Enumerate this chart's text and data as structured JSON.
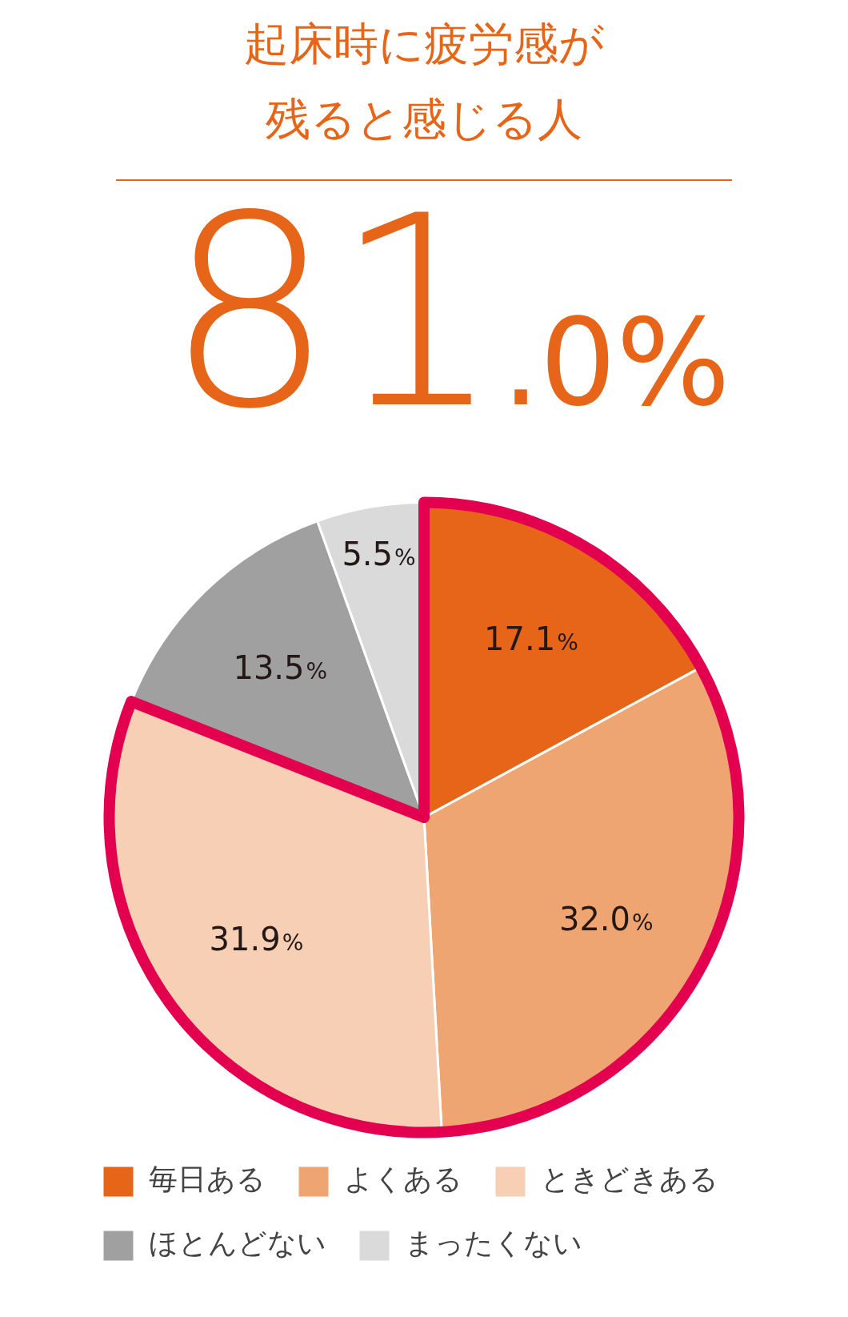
{
  "chart_data": {
    "type": "pie",
    "title": "起床時に疲労感が残ると感じる人",
    "annotations": [
      "81.0%"
    ],
    "categories": [
      "毎日ある",
      "よくある",
      "ときどきある",
      "ほとんどない",
      "まったくない"
    ],
    "values": [
      17.1,
      32.0,
      31.9,
      13.5,
      5.5
    ],
    "colors": [
      "#e66518",
      "#efa572",
      "#f6cfb5",
      "#a0a0a0",
      "#dadada"
    ],
    "value_labels": [
      "17.1%",
      "32.0%",
      "31.9%",
      "13.5%",
      "5.5%"
    ],
    "legend": "bottom"
  }
}
